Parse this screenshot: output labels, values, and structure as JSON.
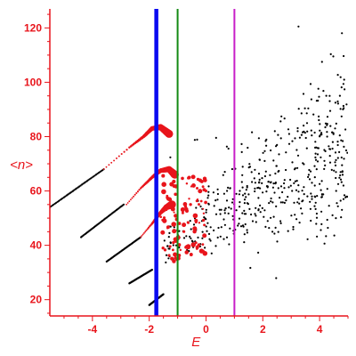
{
  "chart_data": {
    "type": "scatter",
    "title": "",
    "xlabel": "E",
    "ylabel": "<n>",
    "xlim": [
      -5.5,
      5.0
    ],
    "ylim": [
      14,
      127
    ],
    "grid": false,
    "legend": "none",
    "axis_color": "#e8141b",
    "xticks": [
      -4,
      -2,
      0,
      2,
      4
    ],
    "yticks": [
      20,
      40,
      60,
      80,
      100,
      120
    ],
    "vertical_lines": [
      {
        "x": -1.75,
        "color": "#0a0af0",
        "style": "thick"
      },
      {
        "x": -1.0,
        "color": "#138a13",
        "style": "thin"
      },
      {
        "x": 1.0,
        "color": "#c81ec8",
        "style": "thin"
      }
    ],
    "series": [
      {
        "color": "#000000",
        "marker": "dot",
        "segments": [
          {
            "x": [
              -5.5,
              -3.6
            ],
            "y": [
              54,
              68
            ]
          },
          {
            "x": [
              -4.4,
              -2.9
            ],
            "y": [
              43,
              55
            ]
          },
          {
            "x": [
              -3.5,
              -2.3
            ],
            "y": [
              34,
              43
            ]
          },
          {
            "x": [
              -2.7,
              -1.9
            ],
            "y": [
              26,
              31
            ]
          },
          {
            "x": [
              -2.0,
              -1.5
            ],
            "y": [
              18,
              22
            ]
          }
        ],
        "cloud": {
          "x_range": [
            -1.5,
            5.0
          ],
          "y_start": [
            38,
            44
          ],
          "y_end": [
            62,
            110
          ],
          "count": 520
        }
      },
      {
        "color": "#e8141b",
        "marker": "circle",
        "arcs": [
          {
            "x": [
              -3.6,
              -2.7,
              -2.2,
              -1.9,
              -1.6,
              -1.3
            ],
            "y": [
              68,
              76,
              80,
              83,
              83.5,
              81
            ]
          },
          {
            "x": [
              -2.8,
              -2.3,
              -1.9,
              -1.6,
              -1.3,
              -1.1
            ],
            "y": [
              55,
              61,
              65,
              67.5,
              68,
              66
            ]
          },
          {
            "x": [
              -2.3,
              -1.9,
              -1.6,
              -1.4,
              -1.2
            ],
            "y": [
              43,
              48,
              52,
              54,
              55
            ]
          }
        ],
        "cloud": {
          "x_range": [
            -1.6,
            0.0
          ],
          "y_range": [
            34,
            66
          ],
          "count": 110
        }
      }
    ]
  }
}
